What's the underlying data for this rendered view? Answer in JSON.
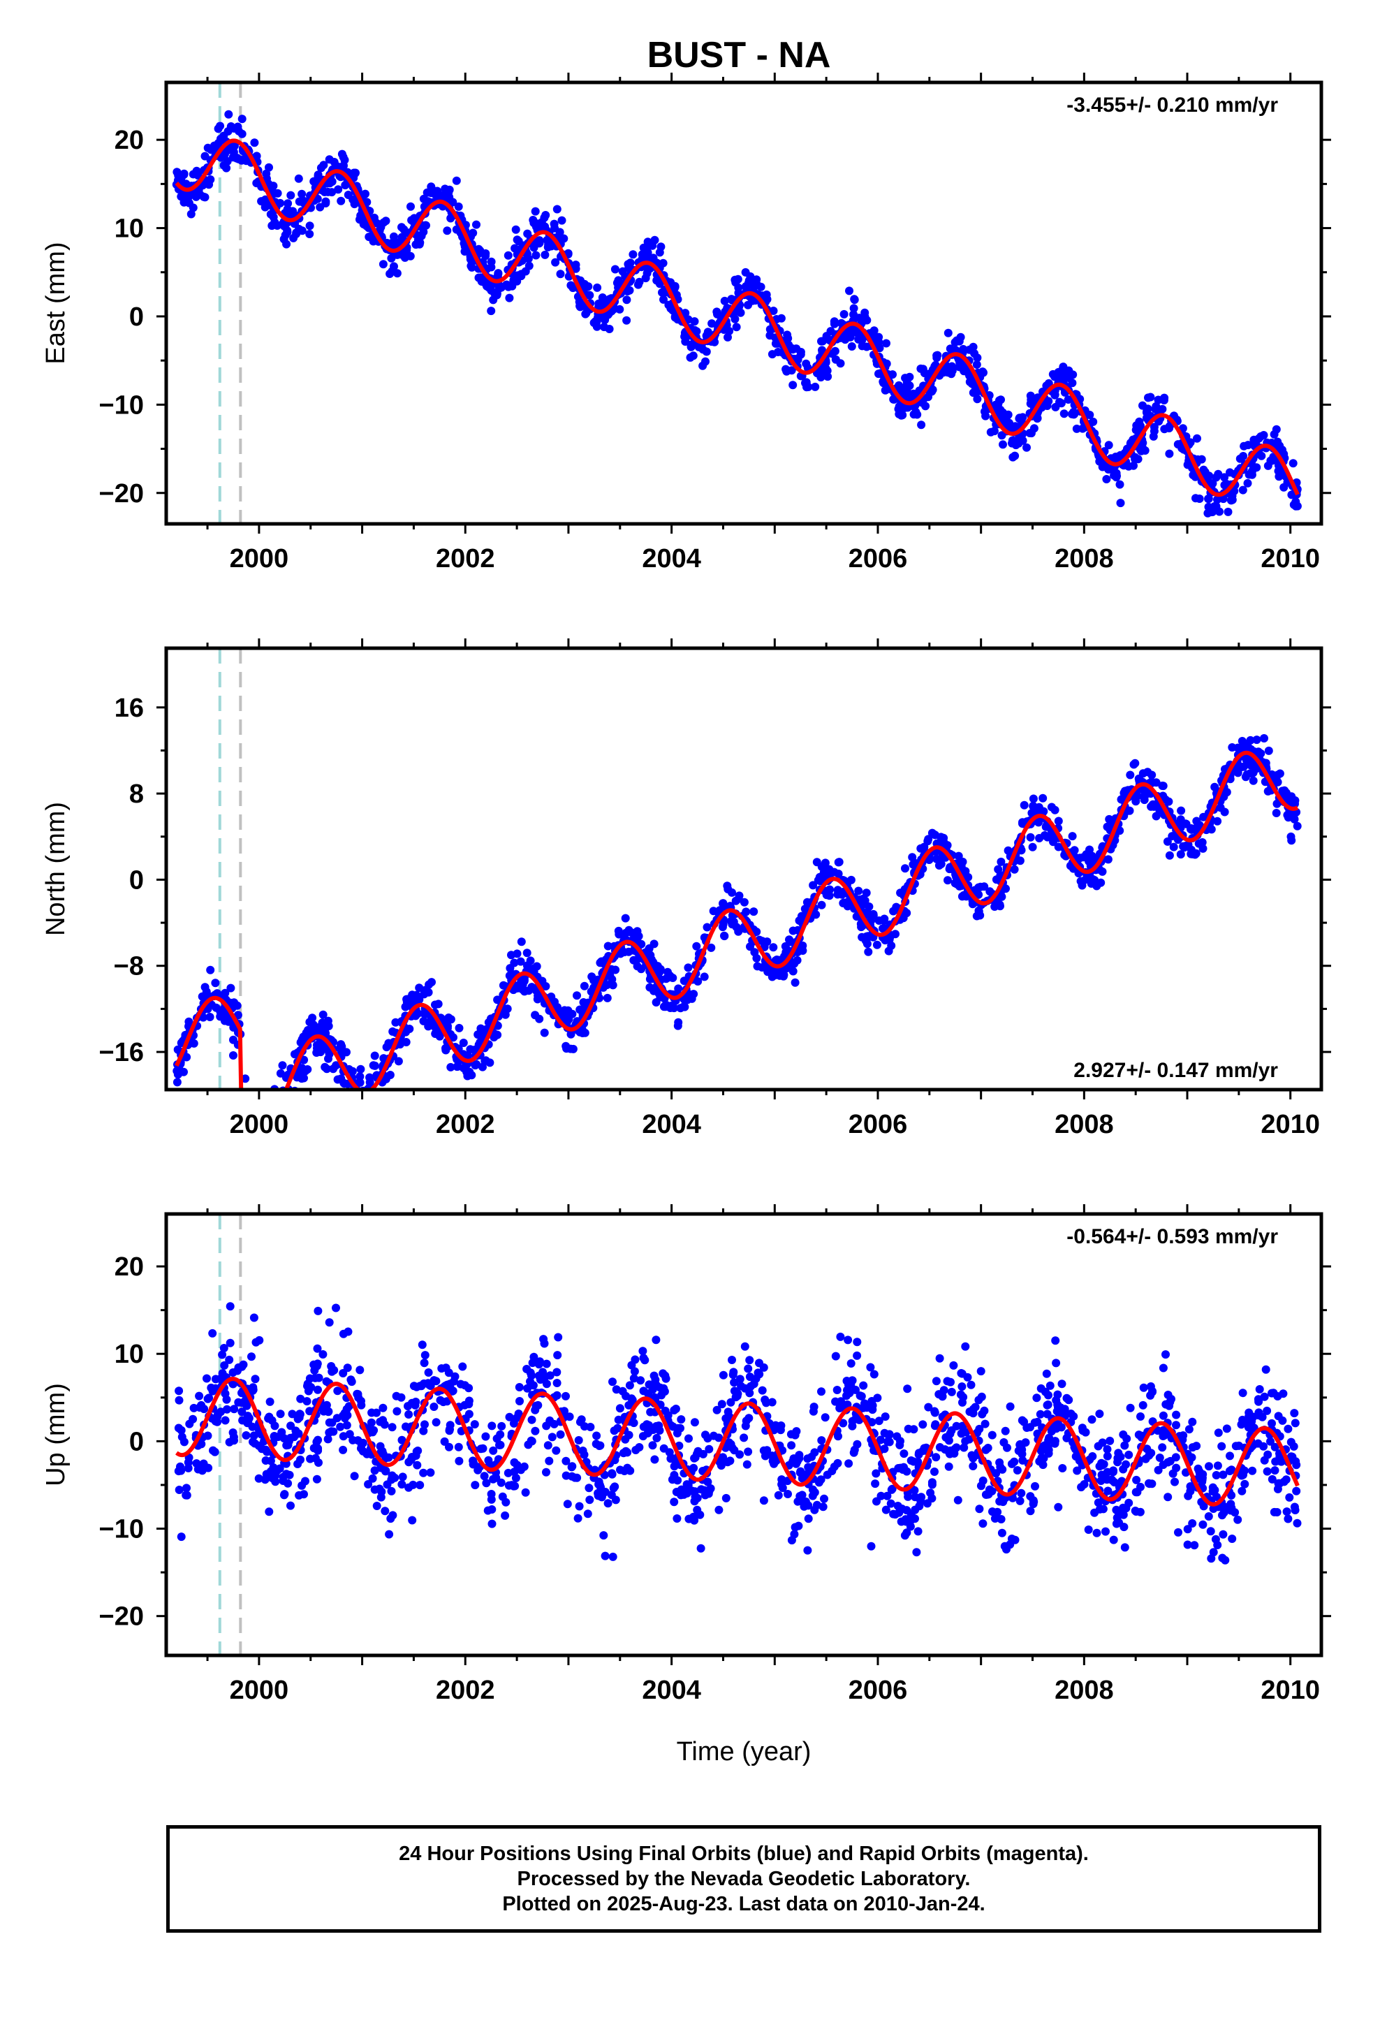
{
  "title": "BUST - NA",
  "xlabel": "Time (year)",
  "footer": {
    "line1": "24 Hour Positions Using Final Orbits (blue) and Rapid Orbits (magenta).",
    "line2": "Processed by the Nevada Geodetic Laboratory.",
    "line3": "Plotted on 2025-Aug-23. Last data on 2010-Jan-24."
  },
  "colors": {
    "data_points": "#0000ff",
    "model_fit": "#ff0000",
    "event_line_1": "#a0d8d8",
    "event_line_2": "#c0c0c0"
  },
  "chart_data": [
    {
      "type": "scatter",
      "panel": "east",
      "ylabel": "East (mm)",
      "rate_label": "-3.455+/- 0.210 mm/yr",
      "xlim": [
        1999.1,
        2010.3
      ],
      "ylim": [
        -23.5,
        26.5
      ],
      "xticks": [
        2000,
        2002,
        2004,
        2006,
        2008,
        2010
      ],
      "yticks": [
        20,
        10,
        0,
        -10,
        -20
      ],
      "event_lines": [
        1999.62,
        1999.82
      ],
      "model": {
        "trend_mm_per_yr": -3.455,
        "offset_at_2000": 15.5,
        "annual_amplitude": 3.6,
        "annual_phase_peak": 0.78,
        "noise_sd": 1.3
      },
      "series": [
        {
          "name": "Final Orbits",
          "color": "#0000ff",
          "x_range": [
            1999.2,
            2010.07
          ],
          "n_points": 1600
        },
        {
          "name": "Model",
          "color": "#ff0000",
          "x_range": [
            1999.2,
            2010.07
          ]
        }
      ],
      "data_end": [
        2010.07,
        -18
      ]
    },
    {
      "type": "scatter",
      "panel": "north",
      "ylabel": "North (mm)",
      "rate_label": "2.927+/- 0.147 mm/yr",
      "xlim": [
        1999.1,
        2010.3
      ],
      "ylim": [
        -19.5,
        21.5
      ],
      "xticks": [
        2000,
        2002,
        2004,
        2006,
        2008,
        2010
      ],
      "yticks": [
        16,
        8,
        0,
        -8,
        -16
      ],
      "event_lines": [
        1999.62,
        1999.82
      ],
      "model": {
        "trend_mm_per_yr": 2.927,
        "offset_at_2000": -13.0,
        "annual_amplitude": 3.3,
        "annual_phase_peak": 0.55,
        "step_at_1999_82": -6.5,
        "noise_sd": 1.1
      },
      "series": [
        {
          "name": "Final Orbits",
          "color": "#0000ff",
          "x_range": [
            1999.2,
            2010.07
          ],
          "n_points": 1600
        },
        {
          "name": "Model",
          "color": "#ff0000",
          "x_range": [
            1999.2,
            2010.07
          ]
        }
      ]
    },
    {
      "type": "scatter",
      "panel": "up",
      "ylabel": "Up (mm)",
      "rate_label": "-0.564+/- 0.593 mm/yr",
      "xlim": [
        1999.1,
        2010.3
      ],
      "ylim": [
        -24.5,
        26.0
      ],
      "xticks": [
        2000,
        2002,
        2004,
        2006,
        2008,
        2010
      ],
      "yticks": [
        20,
        10,
        0,
        -10,
        -20
      ],
      "event_lines": [
        1999.62,
        1999.82
      ],
      "model": {
        "trend_mm_per_yr": -0.564,
        "offset_at_2000": 2.5,
        "annual_amplitude": 4.5,
        "annual_phase_peak": 0.75,
        "noise_sd": 3.6
      },
      "series": [
        {
          "name": "Final Orbits",
          "color": "#0000ff",
          "x_range": [
            1999.2,
            2010.07
          ],
          "n_points": 1600
        },
        {
          "name": "Model",
          "color": "#ff0000",
          "x_range": [
            1999.2,
            2010.07
          ]
        }
      ]
    }
  ]
}
